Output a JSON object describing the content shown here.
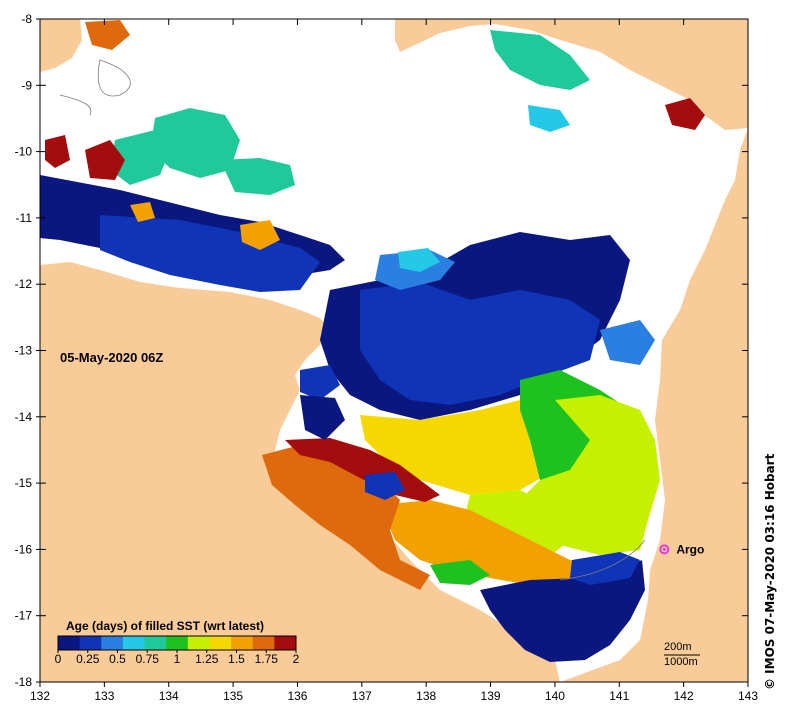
{
  "map": {
    "date_label": "05-May-2020 06Z",
    "x_axis": {
      "min": 132,
      "max": 143,
      "ticks": [
        "132",
        "133",
        "134",
        "135",
        "136",
        "137",
        "138",
        "139",
        "140",
        "141",
        "142",
        "143"
      ]
    },
    "y_axis": {
      "min": -18,
      "max": -8,
      "ticks": [
        "-8",
        "-9",
        "-10",
        "-11",
        "-12",
        "-13",
        "-14",
        "-15",
        "-16",
        "-17",
        "-18"
      ]
    },
    "legend": {
      "title": "Age (days) of filled SST (wrt latest)",
      "labels": [
        "0",
        "0.25",
        "0.5",
        "0.75",
        "1",
        "1.25",
        "1.5",
        "1.75",
        "2"
      ],
      "colors": [
        "#0a1780",
        "#1034b8",
        "#2a7fe0",
        "#25c9e8",
        "#20c99a",
        "#1ec21e",
        "#c6f000",
        "#f5d800",
        "#f2a100",
        "#de6a0d",
        "#a40d0d"
      ]
    },
    "marker": {
      "label": "Argo",
      "color": "#e03de0",
      "lon": 141.7,
      "lat": -16.0
    },
    "scale": {
      "contour_200": "200m",
      "contour_1000": "1000m"
    },
    "credit": "© IMOS 07-May-2020 03:16 Hobart",
    "land_color": "#f9cb99",
    "no_data_color": "#ffffff"
  }
}
